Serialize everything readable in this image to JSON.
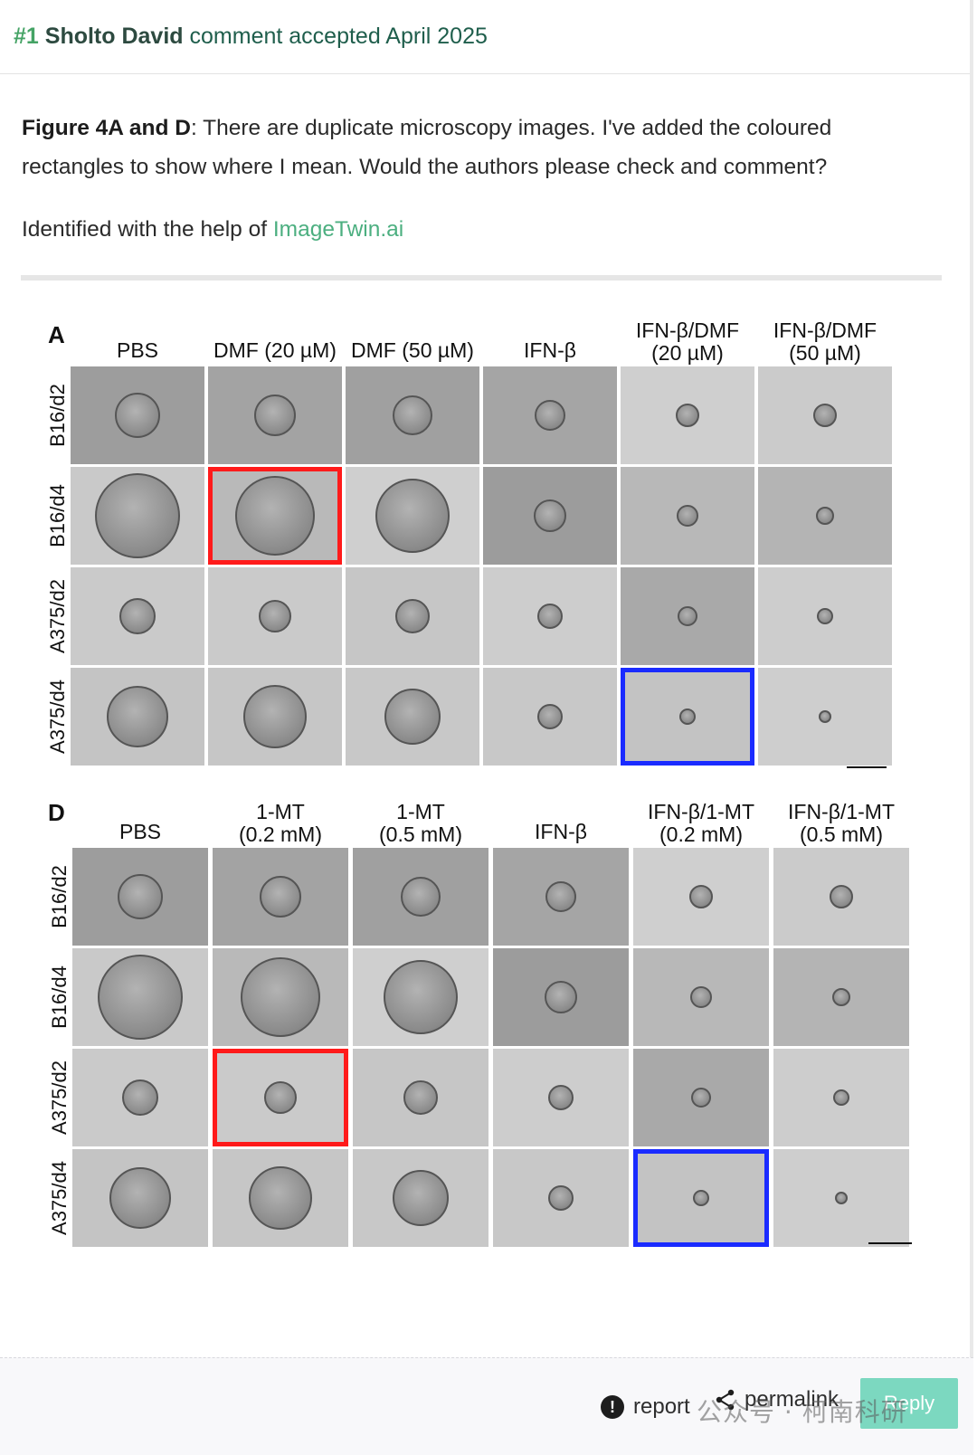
{
  "comment": {
    "number": "#1",
    "author": "Sholto David",
    "meta": "comment accepted April 2025",
    "figure_ref": "Figure 4A and D",
    "body_rest": ": There are duplicate microscopy images. I've added the coloured rectangles to show where I mean. Would the authors please check and comment?",
    "identified_prefix": "Identified with the help of ",
    "identified_link": "ImageTwin.ai"
  },
  "figure": {
    "panel_a": {
      "letter": "A",
      "columns": [
        "PBS",
        "DMF (20 µM)",
        "DMF (50 µM)",
        "IFN-β",
        "IFN-β/DMF\n(20 µM)",
        "IFN-β/DMF\n(50 µM)"
      ],
      "rows": [
        "B16/d2",
        "B16/d4",
        "A375/d2",
        "A375/d4"
      ]
    },
    "panel_d": {
      "letter": "D",
      "columns": [
        "PBS",
        "1-MT\n(0.2 mM)",
        "1-MT\n(0.5 mM)",
        "IFN-β",
        "IFN-β/1-MT\n(0.2 mM)",
        "IFN-β/1-MT\n(0.5 mM)"
      ],
      "rows": [
        "B16/d2",
        "B16/d4",
        "A375/d2",
        "A375/d4"
      ]
    },
    "highlight_colors": {
      "red": "#ff1a1a",
      "blue": "#1a2bff"
    }
  },
  "footer": {
    "report_label": "report",
    "report_icon": "exclamation-circle-icon",
    "permalink_label": "permalink",
    "permalink_icon": "share-icon",
    "reply_label": "Reply",
    "watermark": "公众号 · 柯南科研"
  }
}
